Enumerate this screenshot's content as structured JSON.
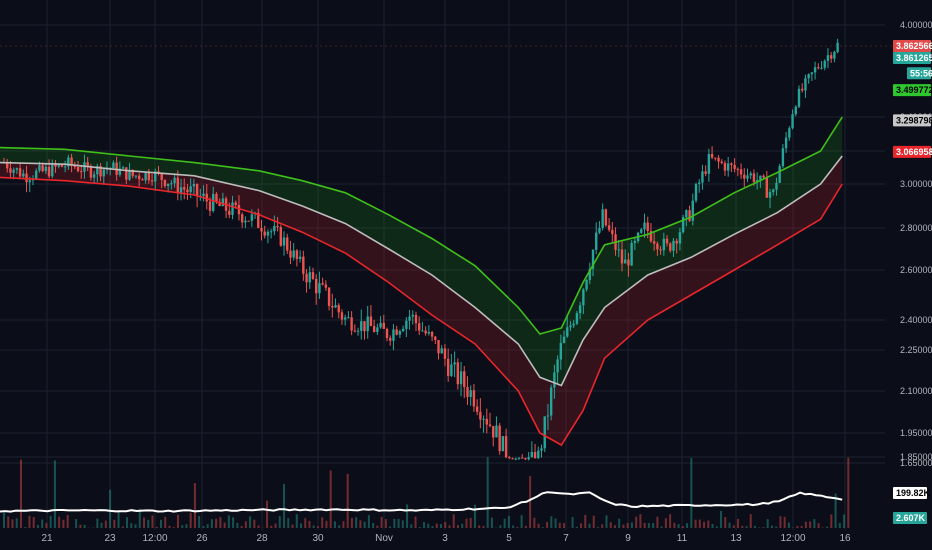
{
  "chart_data": {
    "type": "candlestick",
    "grid": true,
    "price_axis": {
      "position": "right",
      "ticks": [
        {
          "label": "4.00000000",
          "value": 4.0
        },
        {
          "label": "3.40000000",
          "value": 3.4
        },
        {
          "label": "3.20000000",
          "value": 3.2
        },
        {
          "label": "3.00000000",
          "value": 3.0
        },
        {
          "label": "2.80000000",
          "value": 2.8
        },
        {
          "label": "2.60000000",
          "value": 2.6
        },
        {
          "label": "2.40000000",
          "value": 2.4
        },
        {
          "label": "2.25000000",
          "value": 2.25
        },
        {
          "label": "2.10000000",
          "value": 2.1
        },
        {
          "label": "1.95000000",
          "value": 1.95
        },
        {
          "label": "1.85000000",
          "value": 1.85
        },
        {
          "label": "1.65000000",
          "value": 1.65
        }
      ],
      "ylim": [
        1.58,
        4.02
      ]
    },
    "time_axis": {
      "ticks": [
        "21",
        "23",
        "12:00",
        "26",
        "28",
        "30",
        "Nov",
        "3",
        "5",
        "7",
        "9",
        "11",
        "13",
        "12:00",
        "16"
      ],
      "xlim": [
        0,
        40
      ]
    },
    "bands": {
      "upper": {
        "name": "upper band",
        "color": "#3fbf1a",
        "points": [
          [
            0,
            3.22
          ],
          [
            3,
            3.21
          ],
          [
            6,
            3.17
          ],
          [
            9,
            3.13
          ],
          [
            12,
            3.08
          ],
          [
            14,
            3.02
          ],
          [
            16,
            2.96
          ],
          [
            18,
            2.86
          ],
          [
            20,
            2.75
          ],
          [
            22,
            2.62
          ],
          [
            24,
            2.45
          ],
          [
            25,
            2.33
          ],
          [
            26,
            2.36
          ],
          [
            27,
            2.55
          ],
          [
            28,
            2.72
          ],
          [
            30,
            2.77
          ],
          [
            32,
            2.85
          ],
          [
            34,
            2.96
          ],
          [
            36,
            3.07
          ],
          [
            38,
            3.2
          ],
          [
            39,
            3.4
          ]
        ]
      },
      "middle": {
        "name": "basis",
        "color": "#bdbdbd",
        "points": [
          [
            0,
            3.13
          ],
          [
            3,
            3.12
          ],
          [
            6,
            3.08
          ],
          [
            9,
            3.05
          ],
          [
            12,
            2.97
          ],
          [
            14,
            2.9
          ],
          [
            16,
            2.82
          ],
          [
            18,
            2.7
          ],
          [
            20,
            2.58
          ],
          [
            22,
            2.45
          ],
          [
            24,
            2.28
          ],
          [
            25,
            2.15
          ],
          [
            26,
            2.12
          ],
          [
            27,
            2.3
          ],
          [
            28,
            2.45
          ],
          [
            30,
            2.58
          ],
          [
            32,
            2.66
          ],
          [
            34,
            2.77
          ],
          [
            36,
            2.87
          ],
          [
            38,
            3.0
          ],
          [
            39,
            3.17
          ]
        ]
      },
      "lower": {
        "name": "lower band",
        "color": "#e8262b",
        "points": [
          [
            0,
            3.04
          ],
          [
            3,
            3.02
          ],
          [
            6,
            2.99
          ],
          [
            9,
            2.95
          ],
          [
            12,
            2.86
          ],
          [
            14,
            2.78
          ],
          [
            16,
            2.68
          ],
          [
            18,
            2.55
          ],
          [
            20,
            2.42
          ],
          [
            22,
            2.28
          ],
          [
            24,
            2.1
          ],
          [
            25,
            1.95
          ],
          [
            26,
            1.9
          ],
          [
            27,
            2.03
          ],
          [
            28,
            2.22
          ],
          [
            30,
            2.4
          ],
          [
            32,
            2.5
          ],
          [
            34,
            2.6
          ],
          [
            36,
            2.72
          ],
          [
            38,
            2.84
          ],
          [
            39,
            3.0
          ]
        ]
      }
    },
    "price_anchors": [
      [
        0,
        3.13
      ],
      [
        1,
        3.05
      ],
      [
        2,
        3.08
      ],
      [
        3,
        3.12
      ],
      [
        4,
        3.08
      ],
      [
        5,
        3.1
      ],
      [
        6,
        3.05
      ],
      [
        7,
        3.06
      ],
      [
        8,
        3.0
      ],
      [
        9,
        2.95
      ],
      [
        10,
        2.9
      ],
      [
        11,
        2.87
      ],
      [
        12,
        2.82
      ],
      [
        13,
        2.75
      ],
      [
        14,
        2.6
      ],
      [
        15,
        2.5
      ],
      [
        16,
        2.4
      ],
      [
        17,
        2.37
      ],
      [
        18,
        2.33
      ],
      [
        19,
        2.42
      ],
      [
        20,
        2.3
      ],
      [
        21,
        2.17
      ],
      [
        22,
        2.08
      ],
      [
        23,
        1.95
      ],
      [
        24,
        1.78
      ],
      [
        25,
        1.85
      ],
      [
        26,
        2.25
      ],
      [
        27,
        2.5
      ],
      [
        28,
        2.85
      ],
      [
        29,
        2.62
      ],
      [
        30,
        2.8
      ],
      [
        31,
        2.7
      ],
      [
        32,
        2.85
      ],
      [
        33,
        3.15
      ],
      [
        34,
        3.1
      ],
      [
        35,
        3.05
      ],
      [
        36,
        2.95
      ],
      [
        37,
        3.5
      ],
      [
        38,
        3.72
      ],
      [
        39,
        3.87
      ]
    ],
    "price_labels": [
      {
        "label": "3.86256696",
        "value": 3.863,
        "bg": "#e24a4a",
        "fg": "#ffffff"
      },
      {
        "label": "3.86126564",
        "value": 3.785,
        "bg": "#26a69a",
        "fg": "#ffffff"
      },
      {
        "label": "55:56",
        "value": 3.685,
        "bg": "#26a69a",
        "fg": "#ffffff"
      },
      {
        "label": "3.49977240",
        "value": 3.575,
        "bg": "#2ec72e",
        "fg": "#000000"
      },
      {
        "label": "3.29879878",
        "value": 3.38,
        "bg": "#c8c8c8",
        "fg": "#000000"
      },
      {
        "label": "3.06695846",
        "value": 3.195,
        "bg": "#e8262b",
        "fg": "#ffffff"
      }
    ],
    "volume": {
      "line_color": "#ffffff",
      "points": [
        [
          0,
          0.3
        ],
        [
          4,
          0.32
        ],
        [
          8,
          0.3
        ],
        [
          12,
          0.33
        ],
        [
          16,
          0.35
        ],
        [
          20,
          0.32
        ],
        [
          24,
          0.4
        ],
        [
          25,
          0.62
        ],
        [
          26,
          0.95
        ],
        [
          27,
          0.85
        ],
        [
          28,
          0.9
        ],
        [
          29,
          0.55
        ],
        [
          30,
          0.45
        ],
        [
          32,
          0.48
        ],
        [
          34,
          0.5
        ],
        [
          36,
          0.52
        ],
        [
          37,
          0.62
        ],
        [
          38,
          0.9
        ],
        [
          39,
          0.8
        ],
        [
          40,
          0.7
        ]
      ],
      "labels": [
        {
          "label": "199.82K",
          "bg": "#ffffff",
          "fg": "#000000"
        },
        {
          "label": "2.607K",
          "bg": "#26a69a",
          "fg": "#ffffff"
        }
      ]
    },
    "colors": {
      "up": "#26a69a",
      "down": "#ef5350",
      "background": "#0b0e18",
      "grid": "#1c2030"
    }
  }
}
